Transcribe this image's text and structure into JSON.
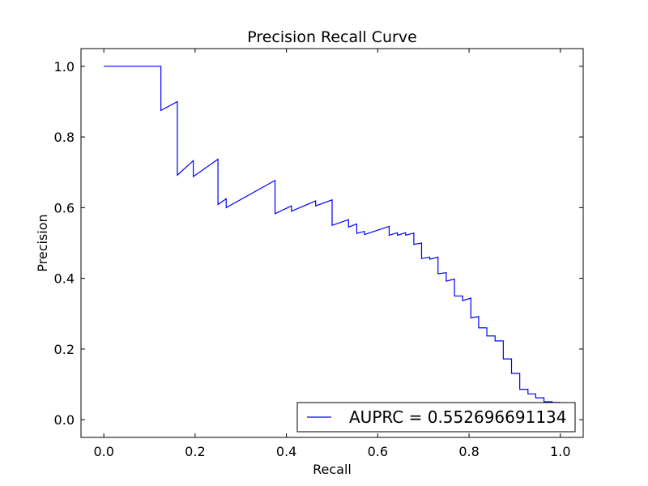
{
  "chart_data": {
    "type": "line",
    "title": "Precision Recall Curve",
    "xlabel": "Recall",
    "ylabel": "Precision",
    "xlim": [
      -0.05,
      1.05
    ],
    "ylim": [
      -0.05,
      1.05
    ],
    "xticks": [
      "0.0",
      "0.2",
      "0.4",
      "0.6",
      "0.8",
      "1.0"
    ],
    "yticks": [
      "0.0",
      "0.2",
      "0.4",
      "0.6",
      "0.8",
      "1.0"
    ],
    "grid": false,
    "legend_position": "lower-right",
    "series": [
      {
        "name": "AUPRC = 0.552696691134",
        "color": "#0000ff",
        "x": [
          0.0,
          0.125,
          0.125,
          0.161,
          0.161,
          0.196,
          0.196,
          0.25,
          0.25,
          0.268,
          0.268,
          0.375,
          0.375,
          0.411,
          0.411,
          0.464,
          0.464,
          0.5,
          0.5,
          0.536,
          0.536,
          0.554,
          0.554,
          0.571,
          0.571,
          0.625,
          0.625,
          0.643,
          0.643,
          0.661,
          0.661,
          0.679,
          0.679,
          0.696,
          0.696,
          0.714,
          0.714,
          0.732,
          0.732,
          0.75,
          0.75,
          0.768,
          0.768,
          0.786,
          0.786,
          0.804,
          0.804,
          0.821,
          0.821,
          0.839,
          0.839,
          0.857,
          0.857,
          0.875,
          0.875,
          0.893,
          0.893,
          0.911,
          0.911,
          0.929,
          0.929,
          0.946,
          0.946,
          0.964,
          0.964,
          0.982,
          0.982,
          1.0
        ],
        "y": [
          1.0,
          1.0,
          0.875,
          0.9,
          0.692,
          0.733,
          0.688,
          0.737,
          0.609,
          0.625,
          0.6,
          0.677,
          0.583,
          0.605,
          0.59,
          0.619,
          0.605,
          0.622,
          0.55,
          0.566,
          0.545,
          0.554,
          0.527,
          0.533,
          0.524,
          0.547,
          0.522,
          0.529,
          0.522,
          0.529,
          0.522,
          0.528,
          0.496,
          0.5,
          0.456,
          0.46,
          0.454,
          0.46,
          0.413,
          0.416,
          0.392,
          0.398,
          0.35,
          0.35,
          0.337,
          0.344,
          0.288,
          0.292,
          0.26,
          0.26,
          0.237,
          0.237,
          0.223,
          0.223,
          0.172,
          0.172,
          0.131,
          0.131,
          0.086,
          0.086,
          0.073,
          0.073,
          0.062,
          0.062,
          0.051,
          0.051,
          0.049,
          0.049
        ]
      }
    ]
  }
}
